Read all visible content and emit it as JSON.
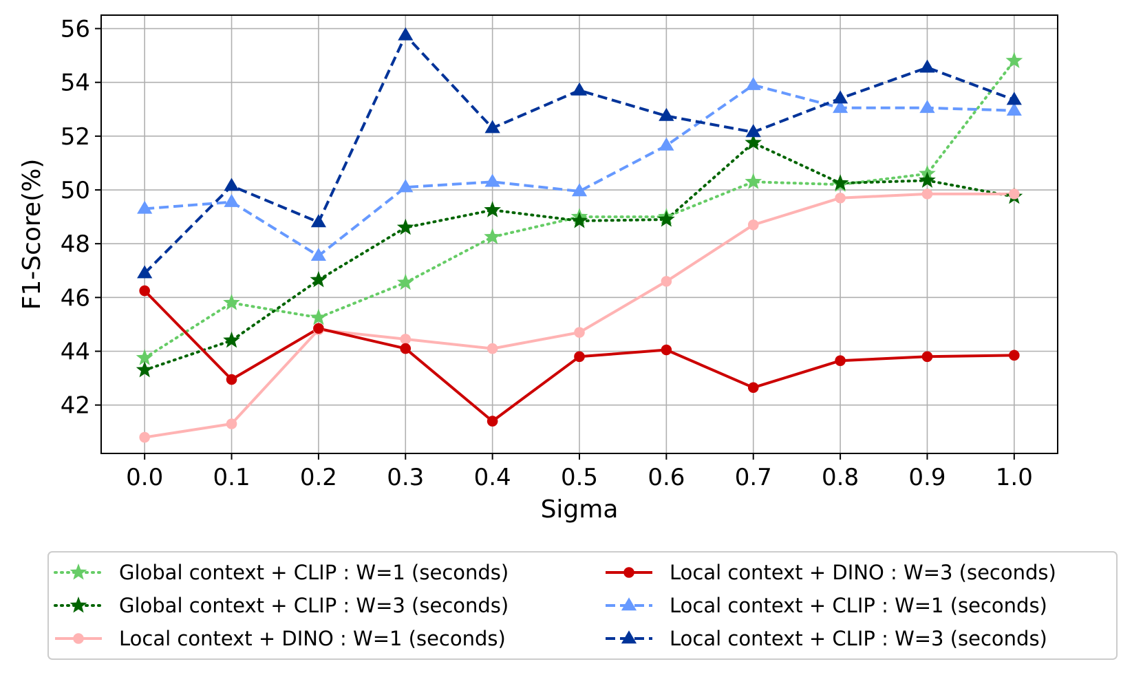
{
  "chart_data": {
    "type": "line",
    "title": "",
    "xlabel": "Sigma",
    "ylabel": "F1-Score(%)",
    "x": [
      0.0,
      0.1,
      0.2,
      0.3,
      0.4,
      0.5,
      0.6,
      0.7,
      0.8,
      0.9,
      1.0
    ],
    "x_tick_labels": [
      "0.0",
      "0.1",
      "0.2",
      "0.3",
      "0.4",
      "0.5",
      "0.6",
      "0.7",
      "0.8",
      "0.9",
      "1.0"
    ],
    "yticks": [
      42,
      44,
      46,
      48,
      50,
      52,
      54,
      56
    ],
    "y_tick_labels": [
      "42",
      "44",
      "46",
      "48",
      "50",
      "52",
      "54",
      "56"
    ],
    "xlim": [
      -0.05,
      1.05
    ],
    "ylim": [
      40.2,
      56.5
    ],
    "grid": true,
    "legend_position": "bottom, outside plot",
    "series": [
      {
        "name": "Global context + CLIP : W=1 (seconds)",
        "color": "#66cc66",
        "linestyle": "dotted",
        "marker": "star",
        "values": [
          43.75,
          45.8,
          45.25,
          46.55,
          48.25,
          49.0,
          49.0,
          50.3,
          50.2,
          50.6,
          54.8
        ]
      },
      {
        "name": "Global context + CLIP : W=3 (seconds)",
        "color": "#006400",
        "linestyle": "dotted",
        "marker": "star",
        "values": [
          43.3,
          44.4,
          46.65,
          48.6,
          49.25,
          48.85,
          48.9,
          51.75,
          50.25,
          50.35,
          49.75
        ]
      },
      {
        "name": "Local context + DINO : W=1 (seconds)",
        "color": "#ffb3b3",
        "linestyle": "solid",
        "marker": "circle",
        "values": [
          40.8,
          41.3,
          44.8,
          44.45,
          44.1,
          44.7,
          46.6,
          48.7,
          49.7,
          49.85,
          49.85
        ]
      },
      {
        "name": "Local context + DINO : W=3 (seconds)",
        "color": "#cc0000",
        "linestyle": "solid",
        "marker": "circle",
        "values": [
          46.25,
          42.95,
          44.85,
          44.1,
          41.4,
          43.8,
          44.05,
          42.65,
          43.65,
          43.8,
          43.85
        ]
      },
      {
        "name": "Local context + CLIP : W=1 (seconds)",
        "color": "#6699ff",
        "linestyle": "dashed",
        "marker": "triangle",
        "values": [
          49.3,
          49.55,
          47.55,
          50.1,
          50.3,
          49.95,
          51.65,
          53.9,
          53.05,
          53.05,
          52.95
        ]
      },
      {
        "name": "Local context + CLIP : W=3 (seconds)",
        "color": "#003399",
        "linestyle": "dashed",
        "marker": "triangle",
        "values": [
          46.9,
          50.15,
          48.8,
          55.75,
          52.3,
          53.7,
          52.75,
          52.15,
          53.4,
          54.55,
          53.35
        ]
      }
    ]
  }
}
